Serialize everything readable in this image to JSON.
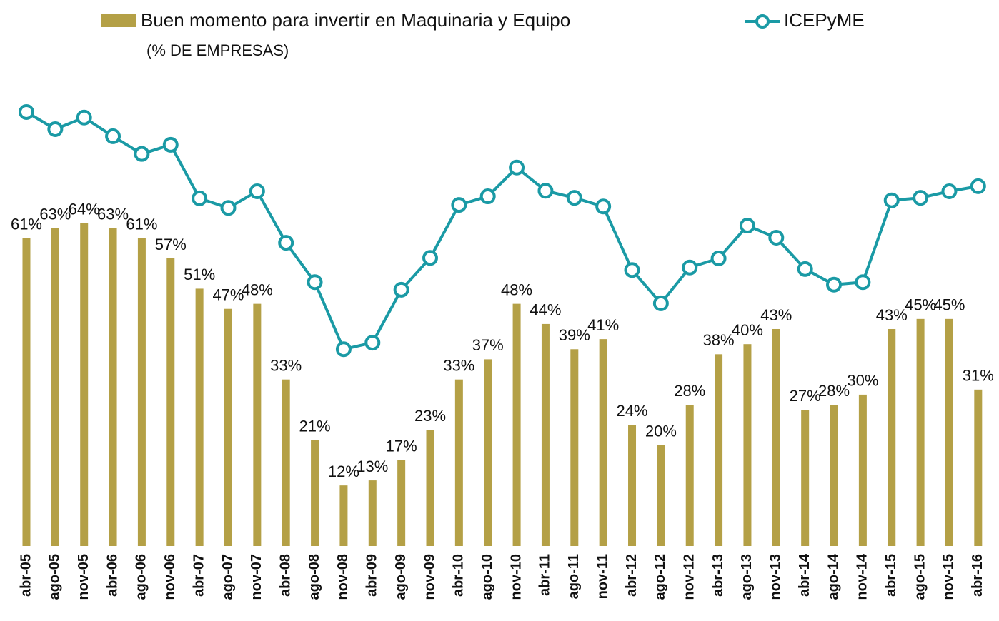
{
  "chart_data": {
    "type": "bar-line",
    "subtitle": "(% DE EMPRESAS)",
    "categories": [
      "abr-05",
      "ago-05",
      "nov-05",
      "abr-06",
      "ago-06",
      "nov-06",
      "abr-07",
      "ago-07",
      "nov-07",
      "abr-08",
      "ago-08",
      "nov-08",
      "abr-09",
      "ago-09",
      "nov-09",
      "abr-10",
      "ago-10",
      "nov-10",
      "abr-11",
      "ago-11",
      "nov-11",
      "abr-12",
      "ago-12",
      "nov-12",
      "abr-13",
      "ago-13",
      "nov-13",
      "abr-14",
      "ago-14",
      "nov-14",
      "abr-15",
      "ago-15",
      "nov-15",
      "abr-16"
    ],
    "series": [
      {
        "name": "Buen momento para invertir en Maquinaria y Equipo",
        "type": "bar",
        "color": "#b4a046",
        "values": [
          61,
          63,
          64,
          63,
          61,
          57,
          51,
          47,
          48,
          33,
          21,
          12,
          13,
          17,
          23,
          33,
          37,
          48,
          44,
          39,
          41,
          24,
          20,
          28,
          38,
          40,
          43,
          27,
          28,
          30,
          43,
          45,
          45,
          31
        ],
        "value_labels": [
          "61%",
          "63%",
          "64%",
          "63%",
          "61%",
          "57%",
          "51%",
          "47%",
          "48%",
          "33%",
          "21%",
          "12%",
          "13%",
          "17%",
          "23%",
          "33%",
          "37%",
          "48%",
          "44%",
          "39%",
          "41%",
          "24%",
          "20%",
          "28%",
          "38%",
          "40%",
          "43%",
          "27%",
          "28%",
          "30%",
          "43%",
          "45%",
          "45%",
          "31%"
        ]
      },
      {
        "name": "ICEPyME",
        "type": "line",
        "axis": "y2",
        "color": "#1a9aa5",
        "values": [
          86,
          82.6,
          84.9,
          81.2,
          77.7,
          79.5,
          68.9,
          67,
          70.3,
          60.1,
          52.3,
          39,
          40.3,
          50.8,
          57.1,
          67.6,
          69.3,
          75,
          70.4,
          69,
          67.3,
          54.7,
          48.1,
          55.2,
          57,
          63.5,
          61.1,
          54.9,
          51.8,
          52.3,
          68.5,
          69,
          70.3,
          71.3
        ]
      }
    ],
    "ylim": [
      0,
      100
    ],
    "y2lim": [
      0,
      100
    ],
    "grid": false
  }
}
